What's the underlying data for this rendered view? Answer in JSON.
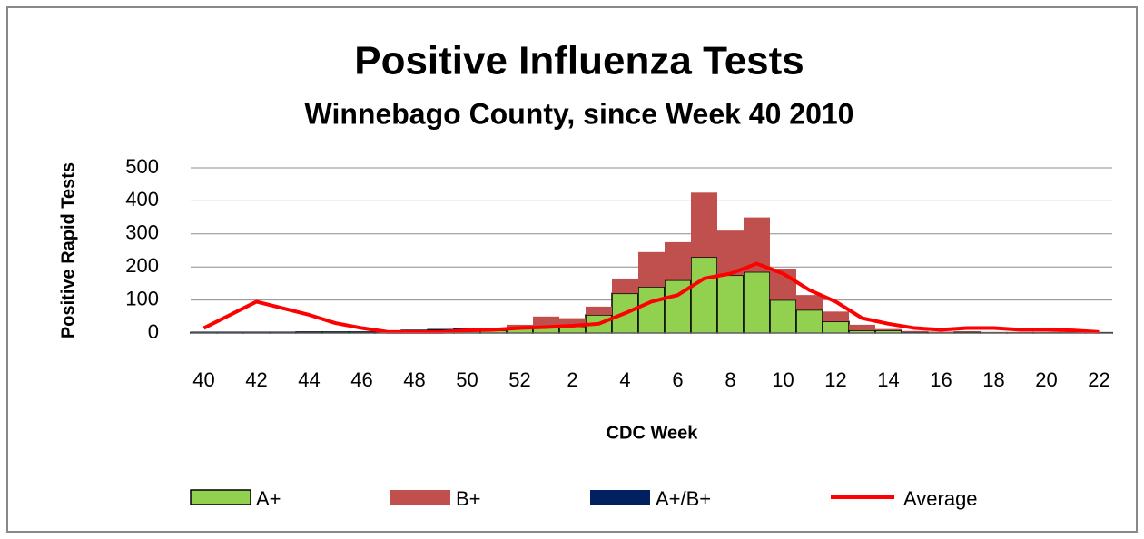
{
  "chart_data": {
    "type": "bar",
    "stacked": true,
    "title": "Positive Influenza Tests",
    "subtitle": "Winnebago County, since Week 40 2010",
    "x_label": "CDC Week",
    "y_label": "Positive Rapid Tests",
    "categories": [
      "40",
      null,
      "42",
      null,
      "44",
      null,
      "46",
      null,
      "48",
      null,
      "50",
      null,
      "52",
      null,
      "2",
      null,
      "4",
      null,
      "6",
      null,
      "8",
      null,
      "10",
      null,
      "12",
      null,
      "14",
      null,
      "16",
      null,
      "18",
      null,
      "20",
      null,
      "22"
    ],
    "series": [
      {
        "name": "A+",
        "color": "#92d050",
        "values": [
          2,
          2,
          2,
          2,
          3,
          3,
          3,
          2,
          8,
          10,
          12,
          8,
          15,
          20,
          20,
          55,
          120,
          140,
          160,
          230,
          175,
          185,
          100,
          70,
          35,
          8,
          8,
          3,
          2,
          3,
          1,
          1,
          1,
          1,
          1
        ]
      },
      {
        "name": "B+",
        "color": "#c0504d",
        "values": [
          0,
          0,
          0,
          0,
          0,
          0,
          0,
          0,
          0,
          0,
          0,
          8,
          10,
          30,
          25,
          25,
          45,
          105,
          115,
          195,
          135,
          165,
          95,
          45,
          30,
          17,
          4,
          3,
          2,
          2,
          1,
          1,
          1,
          1,
          0
        ]
      },
      {
        "name": "A+/B+",
        "color": "#002060",
        "values": [
          1,
          1,
          1,
          1,
          1,
          1,
          1,
          0,
          2,
          2,
          3,
          0,
          0,
          0,
          0,
          0,
          0,
          0,
          0,
          0,
          0,
          0,
          0,
          0,
          0,
          0,
          0,
          0,
          0,
          0,
          0,
          0,
          0,
          0,
          0
        ]
      },
      {
        "name": "Average",
        "type": "line",
        "color": "#ff0000",
        "values": [
          15,
          55,
          95,
          75,
          55,
          30,
          15,
          3,
          3,
          3,
          8,
          10,
          15,
          18,
          22,
          28,
          60,
          95,
          115,
          165,
          180,
          210,
          180,
          130,
          95,
          45,
          28,
          15,
          10,
          15,
          15,
          10,
          10,
          8,
          3
        ]
      }
    ],
    "ylim": [
      0,
      500
    ],
    "yticks": [
      0,
      100,
      200,
      300,
      400,
      500
    ],
    "grid": true,
    "legend": "bottom"
  }
}
